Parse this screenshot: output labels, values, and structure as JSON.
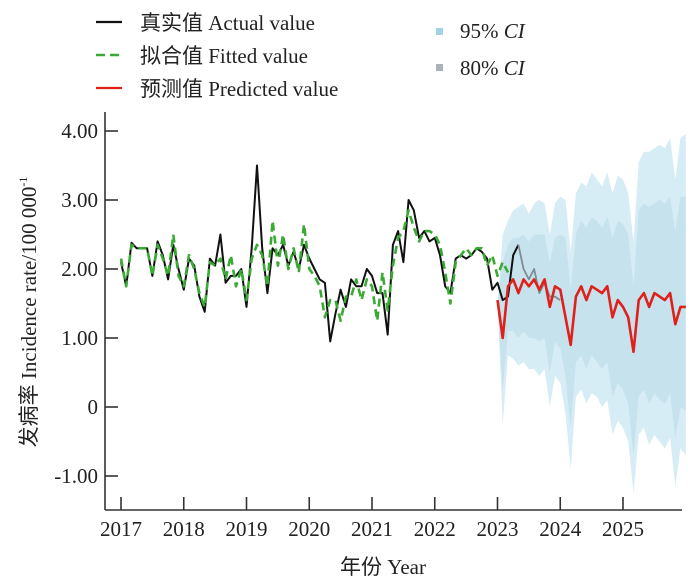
{
  "chart_data": {
    "type": "line",
    "title": "",
    "xlabel": "年份 Year",
    "ylabel": "发病率 Incidence rate/100 000",
    "ylabel_superscript": "-1",
    "ylim": [
      -1.35,
      4.2
    ],
    "xlim": [
      2016.95,
      2025.95
    ],
    "grid": false,
    "legend_placement": "top",
    "x_ticks": [
      2017,
      2018,
      2019,
      2020,
      2021,
      2022,
      2023,
      2024,
      2025
    ],
    "x_tick_labels": [
      "2017",
      "2018",
      "2019",
      "2020",
      "2021",
      "2022",
      "2023",
      "2024",
      "2025"
    ],
    "y_ticks": [
      4,
      3,
      2,
      1,
      0,
      -1
    ],
    "y_tick_labels": [
      "4.00",
      "3.00",
      "2.00",
      "1.00",
      "0",
      "-1.00"
    ],
    "legend": [
      {
        "key": "actual",
        "label": "真实值 Actual value",
        "style": "solid",
        "color": "#111111"
      },
      {
        "key": "fitted",
        "label": "拟合值 Fitted value",
        "style": "dashed",
        "color": "#3aaa35"
      },
      {
        "key": "predicted",
        "label": "预测值 Predicted value",
        "style": "solid",
        "color": "#e0201b"
      },
      {
        "key": "ci95",
        "label": "95%",
        "label_italic": "CI",
        "style": "square",
        "color": "#9fd3e6"
      },
      {
        "key": "ci80",
        "label": "80%",
        "label_italic": "CI",
        "style": "square",
        "color": "#a9b2b8"
      }
    ],
    "series": [
      {
        "name": "真实值 Actual value",
        "color": "#111111",
        "start": 2017.0,
        "step_months": 1,
        "values": [
          2.1,
          1.75,
          2.38,
          2.3,
          2.3,
          2.3,
          1.9,
          2.4,
          2.2,
          1.85,
          2.35,
          2.0,
          1.7,
          2.15,
          2.05,
          1.6,
          1.38,
          2.15,
          2.05,
          2.5,
          1.8,
          1.9,
          1.9,
          2.0,
          1.45,
          2.3,
          3.5,
          2.3,
          1.65,
          2.3,
          2.2,
          2.35,
          2.05,
          2.25,
          2.0,
          2.35,
          2.15,
          2.0,
          1.85,
          1.8,
          0.95,
          1.35,
          1.7,
          1.45,
          1.85,
          1.75,
          1.75,
          2.0,
          1.9,
          1.65,
          1.65,
          1.05,
          2.35,
          2.55,
          2.1,
          3.0,
          2.85,
          2.45,
          2.55,
          2.4,
          2.45,
          2.2,
          1.75,
          1.65,
          2.15,
          2.2,
          2.15,
          2.2,
          2.3,
          2.25,
          2.15,
          1.7,
          1.8,
          1.55,
          1.6,
          2.2,
          2.35
        ]
      },
      {
        "name": "actual-test (grey segment)",
        "color": "#7f8c93",
        "start": 2023.333,
        "step_months": 1,
        "values": [
          2.35,
          2.0,
          1.85,
          2.0,
          1.65,
          1.8,
          1.6,
          1.6,
          1.55
        ]
      },
      {
        "name": "拟合值 Fitted value",
        "color": "#3aaa35",
        "start": 2017.0,
        "step_months": 1,
        "values": [
          2.15,
          1.75,
          2.35,
          2.3,
          2.3,
          2.3,
          1.9,
          2.35,
          2.15,
          1.9,
          2.5,
          1.9,
          1.75,
          2.2,
          2.0,
          1.65,
          1.45,
          2.1,
          2.05,
          2.15,
          1.85,
          2.2,
          1.75,
          2.0,
          1.55,
          2.15,
          2.35,
          2.2,
          1.75,
          2.7,
          2.05,
          2.5,
          2.0,
          2.3,
          1.95,
          2.65,
          2.0,
          1.9,
          1.75,
          1.3,
          1.55,
          1.55,
          1.25,
          1.6,
          1.6,
          1.85,
          1.55,
          1.85,
          1.75,
          1.25,
          1.95,
          1.4,
          2.05,
          2.45,
          2.55,
          2.85,
          2.6,
          2.4,
          2.55,
          2.55,
          2.5,
          2.35,
          1.95,
          1.5,
          2.1,
          2.2,
          2.3,
          2.2,
          2.3,
          2.3,
          2.05,
          2.2,
          1.9,
          2.1,
          1.95
        ]
      },
      {
        "name": "预测值 Predicted value",
        "color": "#e0201b",
        "start": 2023.0,
        "step_months": 1,
        "values": [
          1.55,
          1.0,
          1.75,
          1.85,
          1.65,
          1.85,
          1.75,
          1.85,
          1.7,
          1.85,
          1.45,
          1.75,
          1.7,
          1.3,
          0.9,
          1.6,
          1.75,
          1.55,
          1.75,
          1.7,
          1.65,
          1.75,
          1.3,
          1.55,
          1.45,
          1.3,
          0.8,
          1.55,
          1.65,
          1.45,
          1.65,
          1.6,
          1.55,
          1.65,
          1.2,
          1.45,
          1.45
        ]
      }
    ],
    "bands": [
      {
        "name": "95% CI",
        "color": "#d5ecf6",
        "start": 2023.0,
        "step_months": 1,
        "upper": [
          1.5,
          2.5,
          2.7,
          2.85,
          2.9,
          2.95,
          2.8,
          2.95,
          3.0,
          2.95,
          2.5,
          2.95,
          3.05,
          3.0,
          2.25,
          3.1,
          3.25,
          3.2,
          3.4,
          3.3,
          3.2,
          3.4,
          3.1,
          3.35,
          3.3,
          3.1,
          2.4,
          3.55,
          3.7,
          3.7,
          3.75,
          3.8,
          3.75,
          3.9,
          3.3,
          3.9,
          3.95
        ],
        "lower": [
          1.5,
          -0.25,
          0.75,
          0.7,
          0.6,
          0.65,
          0.55,
          0.55,
          0.45,
          0.55,
          0.0,
          0.45,
          0.35,
          -0.1,
          -0.9,
          0.15,
          0.25,
          0.05,
          0.2,
          0.15,
          0.0,
          0.1,
          -0.4,
          -0.2,
          -0.3,
          -0.5,
          -1.25,
          -0.4,
          -0.3,
          -0.55,
          -0.4,
          -0.5,
          -0.6,
          -0.45,
          -1.15,
          -0.6,
          -0.7
        ]
      },
      {
        "name": "80% CI",
        "color": "#c3dfeb",
        "start": 2023.0,
        "step_months": 1,
        "upper": [
          1.5,
          2.1,
          2.35,
          2.45,
          2.45,
          2.5,
          2.4,
          2.5,
          2.5,
          2.5,
          2.1,
          2.45,
          2.5,
          2.45,
          1.7,
          2.5,
          2.7,
          2.6,
          2.75,
          2.7,
          2.6,
          2.75,
          2.45,
          2.7,
          2.65,
          2.5,
          1.75,
          2.85,
          2.95,
          2.9,
          2.95,
          3.0,
          2.95,
          3.05,
          2.55,
          3.05,
          3.05
        ],
        "lower": [
          1.5,
          0.25,
          1.1,
          1.1,
          1.0,
          1.1,
          1.0,
          1.0,
          0.95,
          1.0,
          0.5,
          0.95,
          0.85,
          0.45,
          -0.3,
          0.65,
          0.75,
          0.55,
          0.75,
          0.65,
          0.55,
          0.65,
          0.15,
          0.35,
          0.25,
          0.05,
          -0.7,
          0.15,
          0.25,
          0.05,
          0.2,
          0.1,
          0.05,
          0.2,
          -0.45,
          0.0,
          -0.05
        ]
      }
    ]
  }
}
